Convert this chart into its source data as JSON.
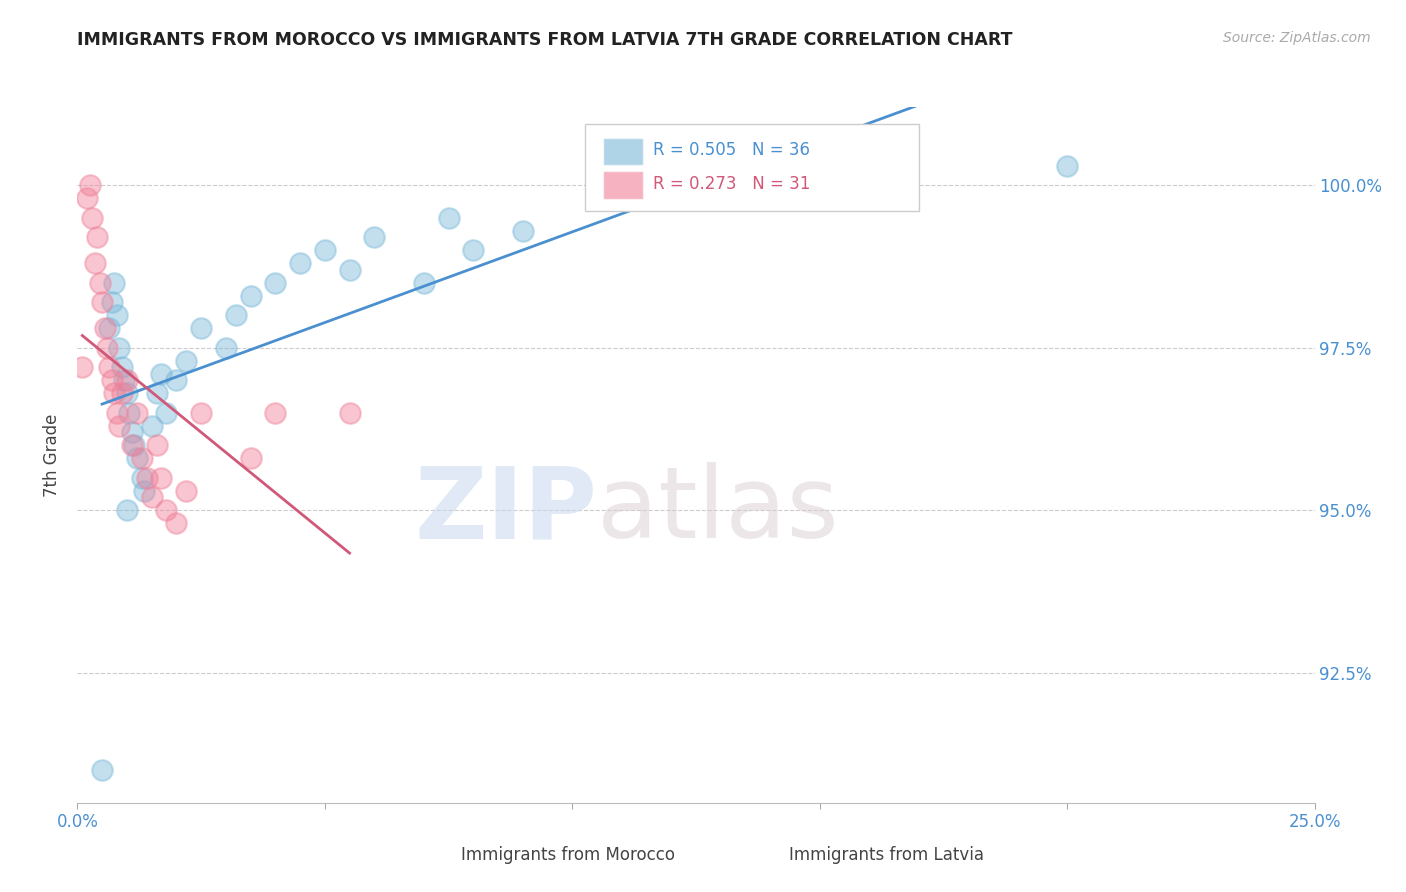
{
  "title": "IMMIGRANTS FROM MOROCCO VS IMMIGRANTS FROM LATVIA 7TH GRADE CORRELATION CHART",
  "source": "Source: ZipAtlas.com",
  "ylabel": "7th Grade",
  "xlim": [
    0.0,
    25.0
  ],
  "ylim": [
    90.5,
    101.2
  ],
  "x_ticks": [
    0.0,
    5.0,
    10.0,
    15.0,
    20.0,
    25.0
  ],
  "y_ticks": [
    92.5,
    95.0,
    97.5,
    100.0
  ],
  "y_tick_labels": [
    "92.5%",
    "95.0%",
    "97.5%",
    "100.0%"
  ],
  "legend_r1": "R = 0.505",
  "legend_n1": "N = 36",
  "legend_r2": "R = 0.273",
  "legend_n2": "N = 31",
  "morocco_color": "#7ab8d9",
  "latvia_color": "#f08098",
  "morocco_line_color": "#4a90d0",
  "latvia_line_color": "#d05878",
  "watermark_zip": "ZIP",
  "watermark_atlas": "atlas",
  "morocco_x": [
    0.5,
    0.65,
    0.7,
    0.75,
    0.8,
    0.85,
    0.9,
    0.95,
    1.0,
    1.05,
    1.1,
    1.15,
    1.2,
    1.3,
    1.35,
    1.5,
    1.6,
    1.7,
    1.8,
    2.0,
    2.2,
    2.5,
    3.0,
    3.2,
    3.5,
    4.0,
    4.5,
    5.0,
    5.5,
    6.0,
    7.0,
    7.5,
    8.0,
    9.0,
    1.0,
    20.0
  ],
  "morocco_y": [
    91.0,
    97.8,
    98.2,
    98.5,
    98.0,
    97.5,
    97.2,
    97.0,
    96.8,
    96.5,
    96.2,
    96.0,
    95.8,
    95.5,
    95.3,
    96.3,
    96.8,
    97.1,
    96.5,
    97.0,
    97.3,
    97.8,
    97.5,
    98.0,
    98.3,
    98.5,
    98.8,
    99.0,
    98.7,
    99.2,
    98.5,
    99.5,
    99.0,
    99.3,
    95.0,
    100.3
  ],
  "latvia_x": [
    0.1,
    0.2,
    0.25,
    0.3,
    0.35,
    0.4,
    0.45,
    0.5,
    0.55,
    0.6,
    0.65,
    0.7,
    0.75,
    0.8,
    0.85,
    0.9,
    1.0,
    1.1,
    1.2,
    1.3,
    1.4,
    1.5,
    1.6,
    1.7,
    1.8,
    2.0,
    2.2,
    2.5,
    3.5,
    4.0,
    5.5
  ],
  "latvia_y": [
    97.2,
    99.8,
    100.0,
    99.5,
    98.8,
    99.2,
    98.5,
    98.2,
    97.8,
    97.5,
    97.2,
    97.0,
    96.8,
    96.5,
    96.3,
    96.8,
    97.0,
    96.0,
    96.5,
    95.8,
    95.5,
    95.2,
    96.0,
    95.5,
    95.0,
    94.8,
    95.3,
    96.5,
    95.8,
    96.5,
    96.5
  ]
}
